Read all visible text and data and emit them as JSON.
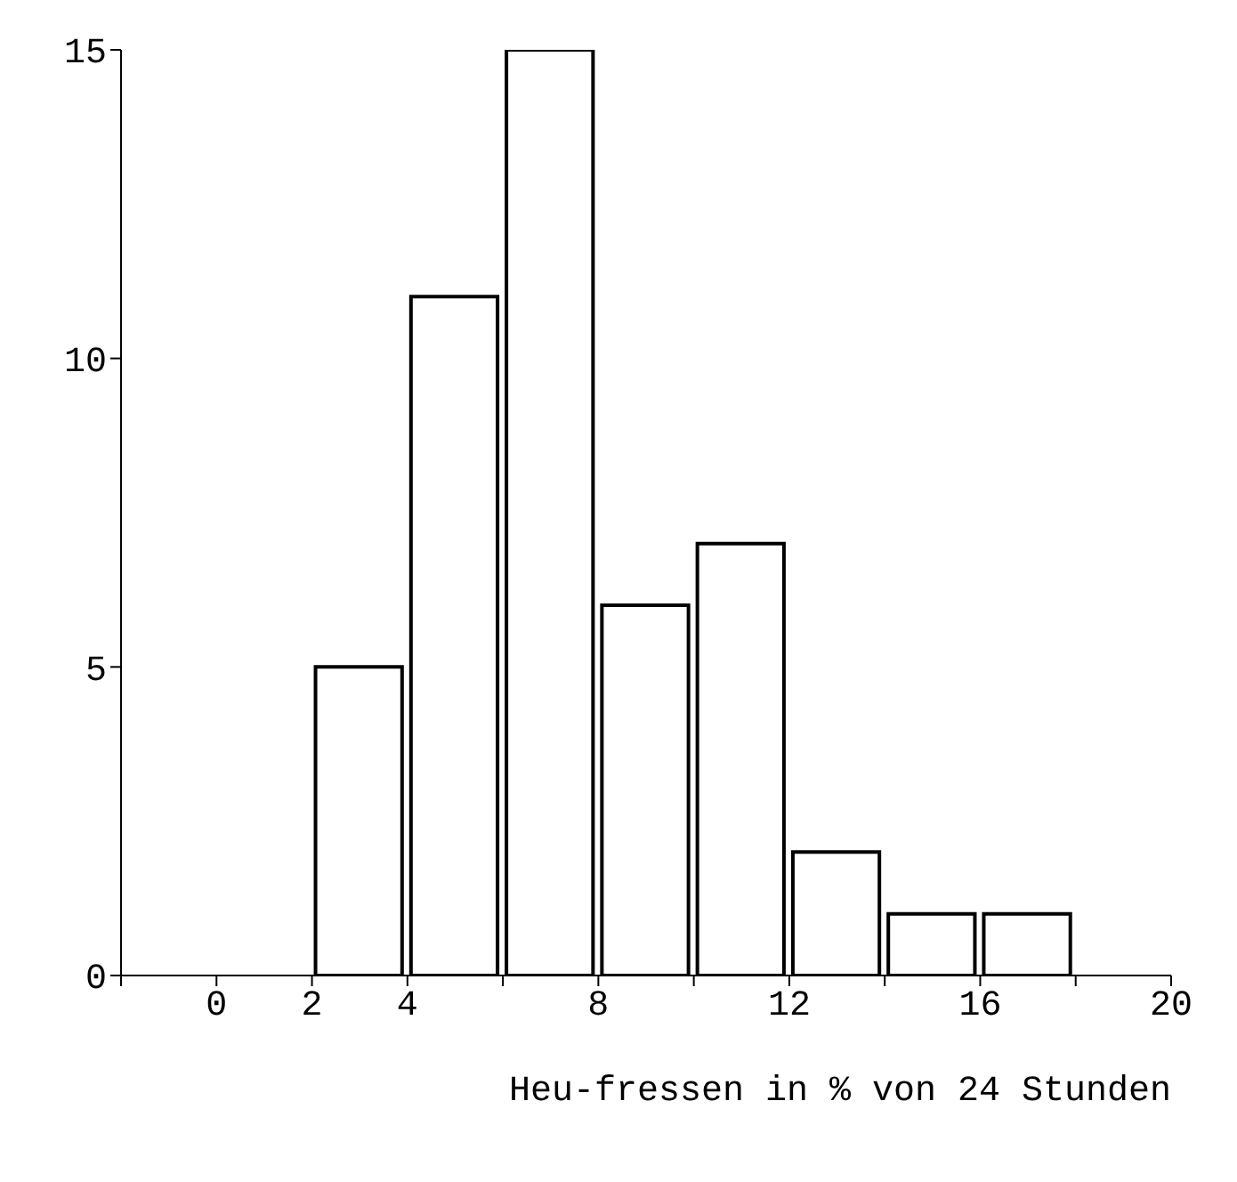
{
  "chart_data": {
    "type": "histogram",
    "xlabel": "Heu-fressen in % von 24 Stunden",
    "bins": [
      -2,
      0,
      2,
      4,
      6,
      8,
      10,
      12,
      14,
      16,
      18,
      20
    ],
    "values": [
      0,
      0,
      5,
      11,
      15,
      6,
      7,
      2,
      1,
      1,
      0
    ],
    "color": "#ffffff",
    "xlim": [
      -2,
      20
    ],
    "xticks": [
      {
        "value": -2,
        "label": null
      },
      0,
      2,
      4,
      {
        "value": 6,
        "label": null
      },
      8,
      {
        "value": 10,
        "label": null
      },
      12,
      {
        "value": 14,
        "label": null
      },
      16,
      {
        "value": 18,
        "label": null
      },
      20
    ],
    "ylim": [
      0,
      15
    ],
    "yticks": [
      0,
      5,
      10,
      15
    ]
  }
}
